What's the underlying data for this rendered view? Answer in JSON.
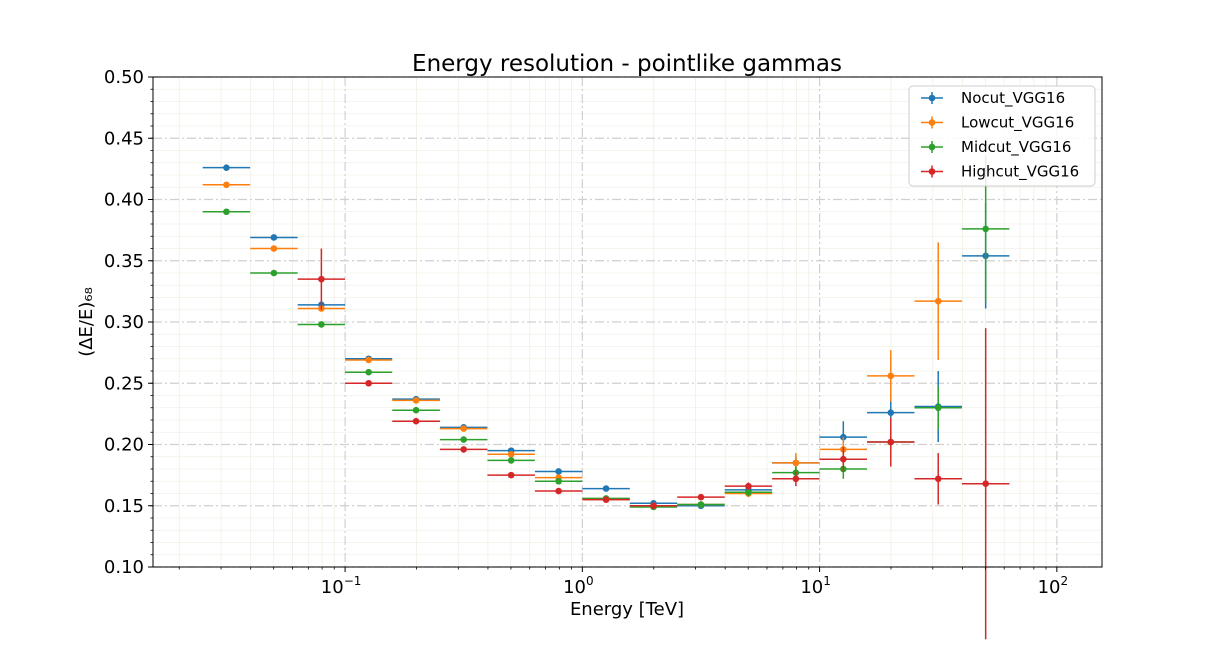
{
  "chart_data": {
    "type": "scatter",
    "title": "Energy resolution - pointlike gammas",
    "xlabel": "Energy [TeV]",
    "ylabel": "(ΔE/E)₆₈",
    "xscale": "log",
    "xlim": [
      0.0155,
      155
    ],
    "ylim": [
      0.1,
      0.5
    ],
    "yticks": [
      "0.10",
      "0.15",
      "0.20",
      "0.25",
      "0.30",
      "0.35",
      "0.40",
      "0.45",
      "0.50"
    ],
    "xticks": [
      {
        "value": 0.1,
        "base": "10",
        "exp": "−1"
      },
      {
        "value": 1,
        "base": "10",
        "exp": "0"
      },
      {
        "value": 10,
        "base": "10",
        "exp": "1"
      },
      {
        "value": 100,
        "base": "10",
        "exp": "2"
      }
    ],
    "grid": true,
    "legend_position": "top-right",
    "bin_edges": [
      0.0251,
      0.0398,
      0.0631,
      0.1,
      0.158,
      0.251,
      0.398,
      0.631,
      1.0,
      1.585,
      2.512,
      3.981,
      6.31,
      10.0,
      15.85,
      25.12,
      39.81,
      63.1
    ],
    "series": [
      {
        "name": "Nocut_VGG16",
        "color": "#1f77b4",
        "points": [
          {
            "bin": 0,
            "y": 0.426,
            "err": 0.002
          },
          {
            "bin": 1,
            "y": 0.369,
            "err": 0.002
          },
          {
            "bin": 2,
            "y": 0.314,
            "err": 0.002
          },
          {
            "bin": 3,
            "y": 0.27,
            "err": 0.002
          },
          {
            "bin": 4,
            "y": 0.237,
            "err": 0.002
          },
          {
            "bin": 5,
            "y": 0.214,
            "err": 0.002
          },
          {
            "bin": 6,
            "y": 0.195,
            "err": 0.002
          },
          {
            "bin": 7,
            "y": 0.178,
            "err": 0.002
          },
          {
            "bin": 8,
            "y": 0.164,
            "err": 0.002
          },
          {
            "bin": 9,
            "y": 0.152,
            "err": 0.002
          },
          {
            "bin": 10,
            "y": 0.15,
            "err": 0.002
          },
          {
            "bin": 11,
            "y": 0.163,
            "err": 0.003
          },
          {
            "bin": 12,
            "y": 0.185,
            "err": 0.005
          },
          {
            "bin": 13,
            "y": 0.206,
            "err": 0.013
          },
          {
            "bin": 14,
            "y": 0.226,
            "err": 0.018
          },
          {
            "bin": 15,
            "y": 0.231,
            "err": 0.029
          },
          {
            "bin": 16,
            "y": 0.354,
            "err": 0.043
          }
        ]
      },
      {
        "name": "Lowcut_VGG16",
        "color": "#ff7f0e",
        "points": [
          {
            "bin": 0,
            "y": 0.412,
            "err": 0.002
          },
          {
            "bin": 1,
            "y": 0.36,
            "err": 0.002
          },
          {
            "bin": 2,
            "y": 0.311,
            "err": 0.002
          },
          {
            "bin": 3,
            "y": 0.269,
            "err": 0.002
          },
          {
            "bin": 4,
            "y": 0.236,
            "err": 0.002
          },
          {
            "bin": 5,
            "y": 0.213,
            "err": 0.002
          },
          {
            "bin": 6,
            "y": 0.192,
            "err": 0.002
          },
          {
            "bin": 7,
            "y": 0.173,
            "err": 0.002
          },
          {
            "bin": 8,
            "y": 0.155,
            "err": 0.002
          },
          {
            "bin": 9,
            "y": 0.15,
            "err": 0.002
          },
          {
            "bin": 10,
            "y": 0.151,
            "err": 0.002
          },
          {
            "bin": 11,
            "y": 0.16,
            "err": 0.003
          },
          {
            "bin": 12,
            "y": 0.185,
            "err": 0.008
          },
          {
            "bin": 13,
            "y": 0.196,
            "err": 0.01
          },
          {
            "bin": 14,
            "y": 0.256,
            "err": 0.021
          },
          {
            "bin": 15,
            "y": 0.317,
            "err": 0.048
          }
        ]
      },
      {
        "name": "Midcut_VGG16",
        "color": "#2ca02c",
        "points": [
          {
            "bin": 0,
            "y": 0.39,
            "err": 0.002
          },
          {
            "bin": 1,
            "y": 0.34,
            "err": 0.002
          },
          {
            "bin": 2,
            "y": 0.298,
            "err": 0.002
          },
          {
            "bin": 3,
            "y": 0.259,
            "err": 0.002
          },
          {
            "bin": 4,
            "y": 0.228,
            "err": 0.002
          },
          {
            "bin": 5,
            "y": 0.204,
            "err": 0.002
          },
          {
            "bin": 6,
            "y": 0.187,
            "err": 0.002
          },
          {
            "bin": 7,
            "y": 0.17,
            "err": 0.002
          },
          {
            "bin": 8,
            "y": 0.156,
            "err": 0.002
          },
          {
            "bin": 9,
            "y": 0.149,
            "err": 0.002
          },
          {
            "bin": 10,
            "y": 0.151,
            "err": 0.002
          },
          {
            "bin": 11,
            "y": 0.161,
            "err": 0.003
          },
          {
            "bin": 12,
            "y": 0.177,
            "err": 0.005
          },
          {
            "bin": 13,
            "y": 0.18,
            "err": 0.008
          },
          {
            "bin": 14,
            "y": 0.202,
            "err": 0.01
          },
          {
            "bin": 15,
            "y": 0.23,
            "err": 0.018
          },
          {
            "bin": 16,
            "y": 0.376,
            "err": 0.06
          }
        ]
      },
      {
        "name": "Highcut_VGG16",
        "color": "#d62728",
        "points": [
          {
            "bin": 2,
            "y": 0.335,
            "err": 0.025
          },
          {
            "bin": 3,
            "y": 0.25,
            "err": 0.002
          },
          {
            "bin": 4,
            "y": 0.219,
            "err": 0.002
          },
          {
            "bin": 5,
            "y": 0.196,
            "err": 0.002
          },
          {
            "bin": 6,
            "y": 0.175,
            "err": 0.002
          },
          {
            "bin": 7,
            "y": 0.162,
            "err": 0.002
          },
          {
            "bin": 8,
            "y": 0.155,
            "err": 0.002
          },
          {
            "bin": 9,
            "y": 0.15,
            "err": 0.002
          },
          {
            "bin": 10,
            "y": 0.157,
            "err": 0.002
          },
          {
            "bin": 11,
            "y": 0.166,
            "err": 0.003
          },
          {
            "bin": 12,
            "y": 0.172,
            "err": 0.006
          },
          {
            "bin": 13,
            "y": 0.188,
            "err": 0.01
          },
          {
            "bin": 14,
            "y": 0.202,
            "err": 0.02
          },
          {
            "bin": 15,
            "y": 0.172,
            "err": 0.021
          },
          {
            "bin": 16,
            "y": 0.168,
            "err": 0.127
          }
        ]
      }
    ]
  }
}
